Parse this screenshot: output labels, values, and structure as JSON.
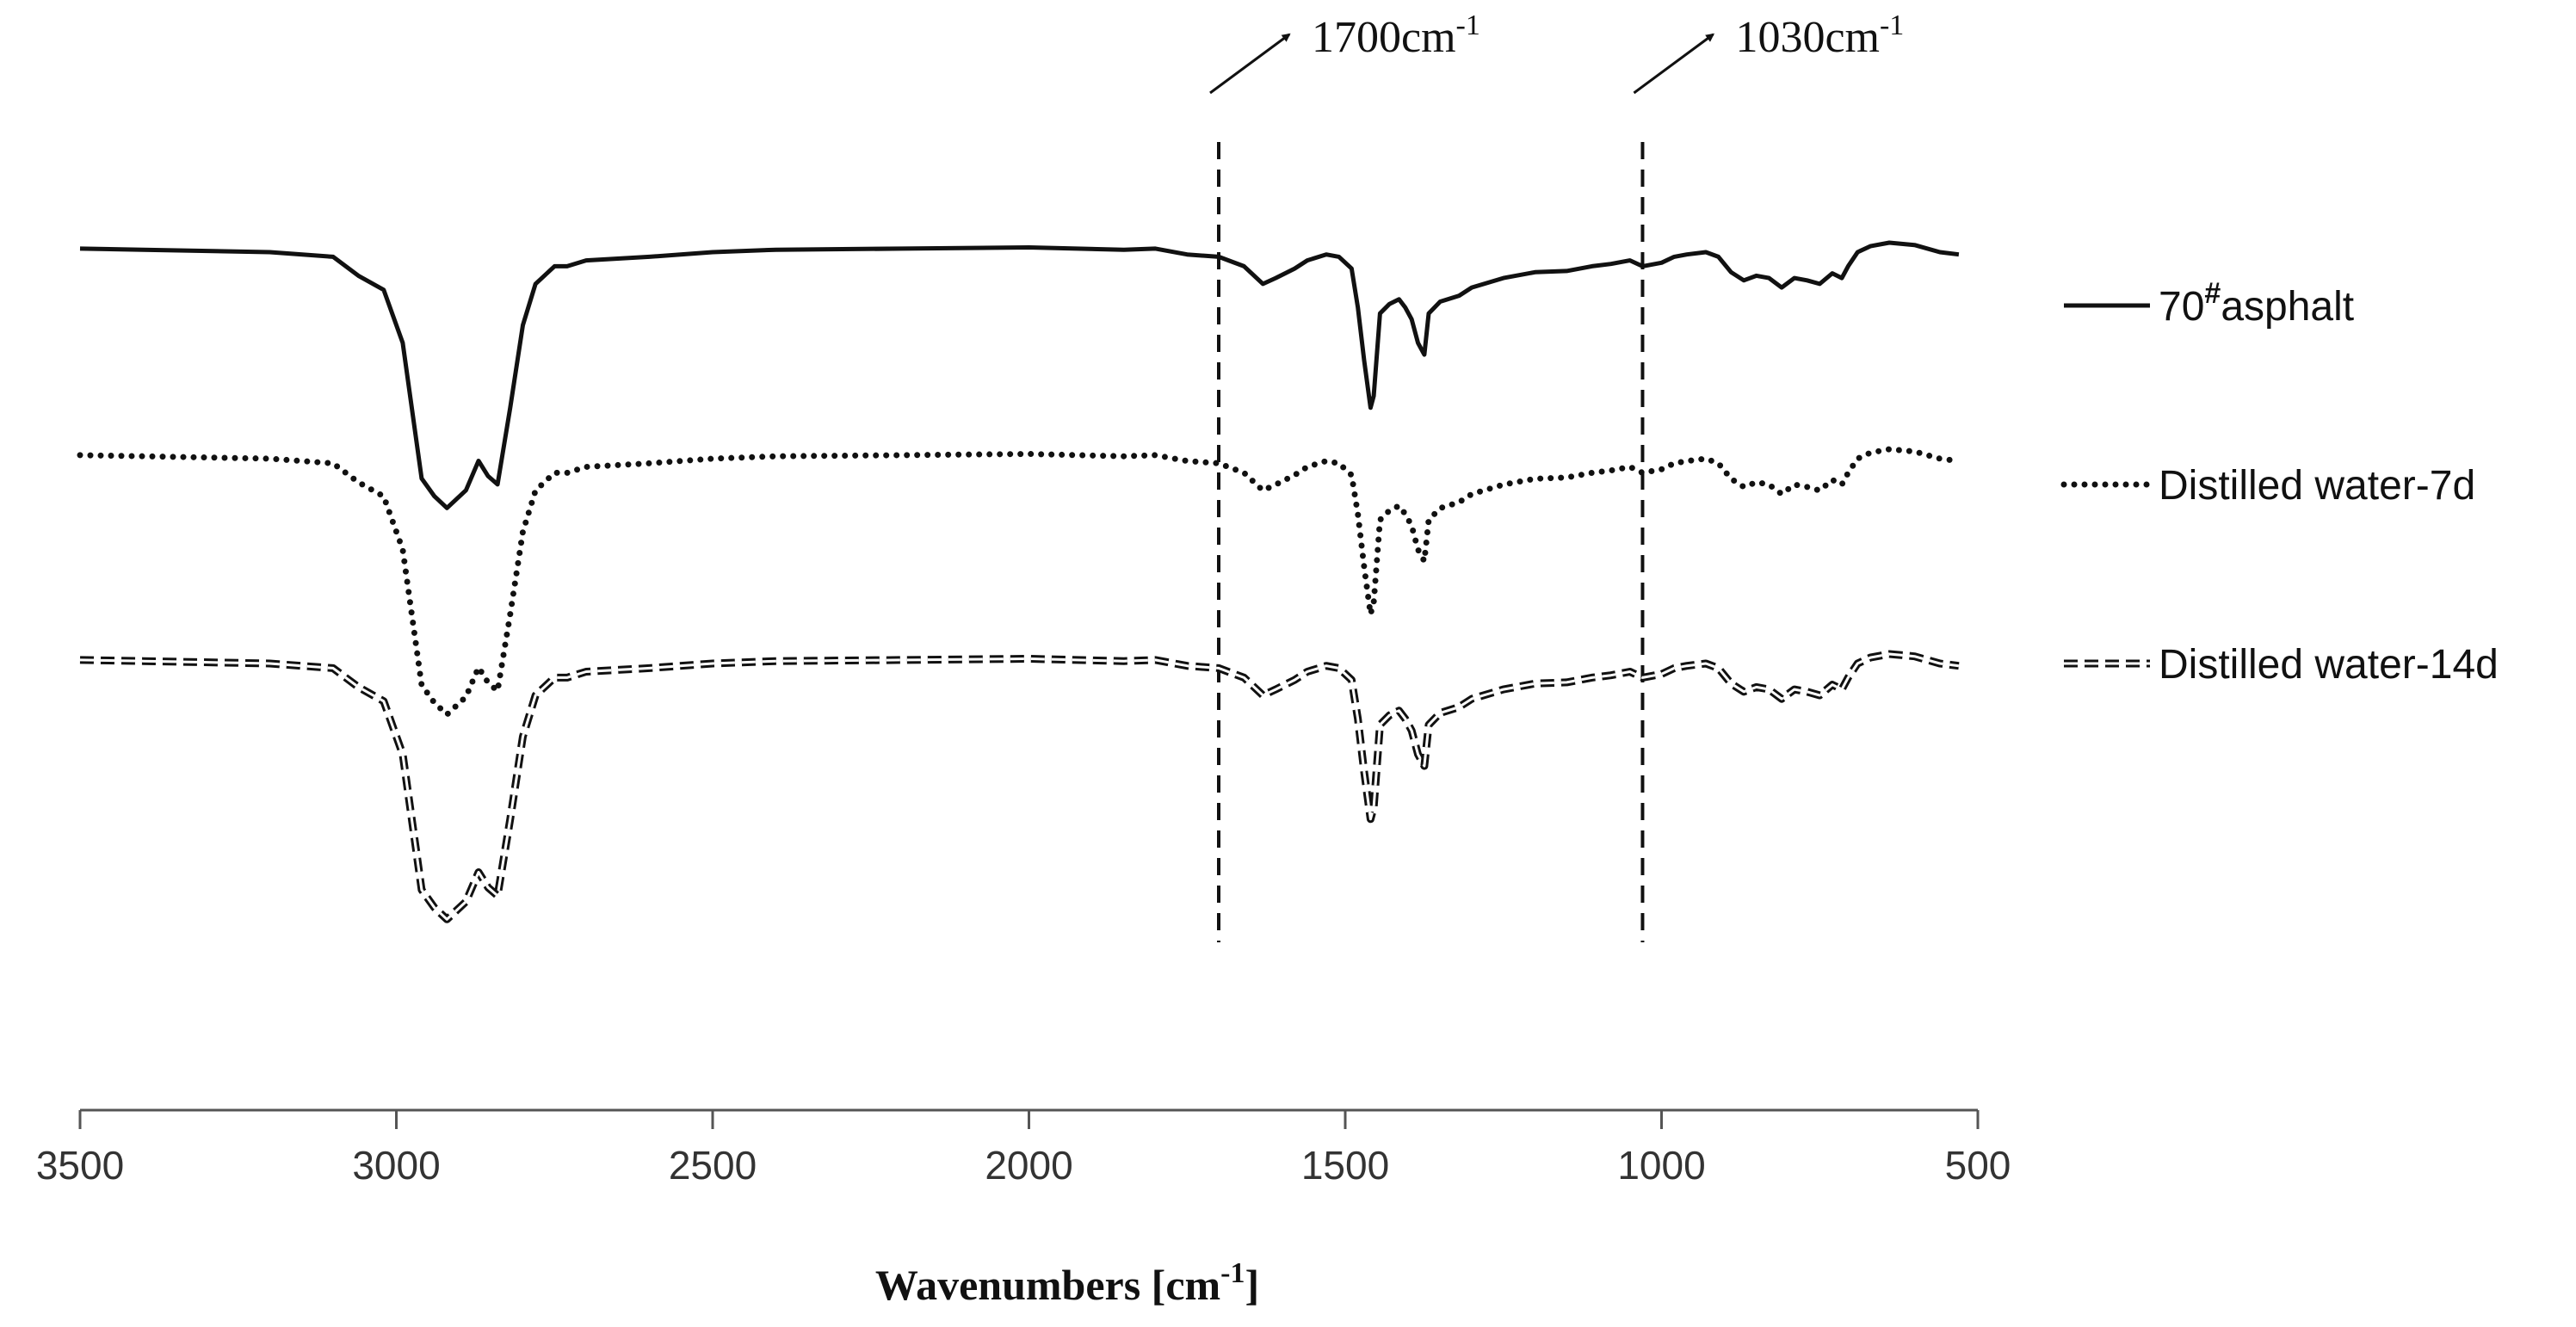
{
  "chart_data": {
    "type": "line",
    "title": "",
    "xlabel": "Wavenumbers [cm",
    "xlabel_sup": "-1",
    "xlabel_close": "]",
    "xlim": [
      3500,
      500
    ],
    "x_ticks": [
      3500,
      3000,
      2500,
      2000,
      1500,
      1000,
      500
    ],
    "y_axis_shown": false,
    "grid": false,
    "legend_position": "right",
    "annotations": [
      {
        "x": 1700,
        "label": "1700cm",
        "sup": "-1"
      },
      {
        "x": 1030,
        "label": "1030cm",
        "sup": "-1"
      }
    ],
    "series": [
      {
        "name": "70# asphalt",
        "legend_label": "70",
        "legend_sup": "#",
        "legend_suffix": "asphalt",
        "style": "solid",
        "color": "#111111",
        "points": [
          [
            3500,
            5
          ],
          [
            3400,
            6
          ],
          [
            3200,
            8
          ],
          [
            3100,
            12
          ],
          [
            3060,
            28
          ],
          [
            3020,
            40
          ],
          [
            2990,
            85
          ],
          [
            2960,
            200
          ],
          [
            2940,
            215
          ],
          [
            2920,
            225
          ],
          [
            2890,
            210
          ],
          [
            2870,
            185
          ],
          [
            2855,
            198
          ],
          [
            2840,
            205
          ],
          [
            2820,
            140
          ],
          [
            2800,
            70
          ],
          [
            2780,
            35
          ],
          [
            2750,
            20
          ],
          [
            2730,
            20
          ],
          [
            2700,
            15
          ],
          [
            2600,
            12
          ],
          [
            2500,
            8
          ],
          [
            2400,
            6
          ],
          [
            2200,
            5
          ],
          [
            2000,
            4
          ],
          [
            1850,
            6
          ],
          [
            1800,
            5
          ],
          [
            1750,
            10
          ],
          [
            1700,
            12
          ],
          [
            1660,
            20
          ],
          [
            1630,
            35
          ],
          [
            1610,
            30
          ],
          [
            1580,
            22
          ],
          [
            1560,
            15
          ],
          [
            1530,
            10
          ],
          [
            1510,
            12
          ],
          [
            1490,
            22
          ],
          [
            1480,
            55
          ],
          [
            1470,
            100
          ],
          [
            1460,
            140
          ],
          [
            1455,
            130
          ],
          [
            1445,
            60
          ],
          [
            1430,
            52
          ],
          [
            1415,
            48
          ],
          [
            1405,
            55
          ],
          [
            1395,
            65
          ],
          [
            1385,
            85
          ],
          [
            1375,
            95
          ],
          [
            1368,
            60
          ],
          [
            1350,
            50
          ],
          [
            1320,
            45
          ],
          [
            1300,
            38
          ],
          [
            1250,
            30
          ],
          [
            1200,
            25
          ],
          [
            1150,
            24
          ],
          [
            1110,
            20
          ],
          [
            1080,
            18
          ],
          [
            1050,
            15
          ],
          [
            1030,
            20
          ],
          [
            1000,
            17
          ],
          [
            980,
            12
          ],
          [
            960,
            10
          ],
          [
            930,
            8
          ],
          [
            910,
            12
          ],
          [
            890,
            25
          ],
          [
            870,
            32
          ],
          [
            850,
            28
          ],
          [
            830,
            30
          ],
          [
            810,
            38
          ],
          [
            790,
            30
          ],
          [
            770,
            32
          ],
          [
            750,
            35
          ],
          [
            730,
            26
          ],
          [
            715,
            30
          ],
          [
            705,
            20
          ],
          [
            690,
            8
          ],
          [
            670,
            3
          ],
          [
            640,
            0
          ],
          [
            600,
            2
          ],
          [
            560,
            8
          ],
          [
            530,
            10
          ]
        ]
      },
      {
        "name": "Distilled water-7d",
        "legend_label": "Distilled water-7d",
        "style": "dotted",
        "color": "#111111",
        "points": [
          [
            3500,
            5
          ],
          [
            3400,
            6
          ],
          [
            3200,
            8
          ],
          [
            3100,
            12
          ],
          [
            3060,
            28
          ],
          [
            3020,
            40
          ],
          [
            2990,
            85
          ],
          [
            2960,
            200
          ],
          [
            2940,
            215
          ],
          [
            2920,
            225
          ],
          [
            2890,
            210
          ],
          [
            2870,
            185
          ],
          [
            2855,
            198
          ],
          [
            2840,
            205
          ],
          [
            2820,
            140
          ],
          [
            2800,
            70
          ],
          [
            2780,
            35
          ],
          [
            2750,
            20
          ],
          [
            2730,
            20
          ],
          [
            2700,
            15
          ],
          [
            2600,
            12
          ],
          [
            2500,
            8
          ],
          [
            2400,
            6
          ],
          [
            2200,
            5
          ],
          [
            2000,
            4
          ],
          [
            1850,
            6
          ],
          [
            1800,
            5
          ],
          [
            1750,
            10
          ],
          [
            1700,
            12
          ],
          [
            1660,
            20
          ],
          [
            1630,
            35
          ],
          [
            1610,
            30
          ],
          [
            1580,
            22
          ],
          [
            1560,
            15
          ],
          [
            1530,
            10
          ],
          [
            1510,
            12
          ],
          [
            1490,
            22
          ],
          [
            1480,
            55
          ],
          [
            1470,
            100
          ],
          [
            1460,
            140
          ],
          [
            1455,
            130
          ],
          [
            1445,
            60
          ],
          [
            1430,
            52
          ],
          [
            1415,
            48
          ],
          [
            1405,
            55
          ],
          [
            1395,
            65
          ],
          [
            1385,
            85
          ],
          [
            1375,
            95
          ],
          [
            1368,
            60
          ],
          [
            1350,
            50
          ],
          [
            1320,
            45
          ],
          [
            1300,
            38
          ],
          [
            1250,
            30
          ],
          [
            1200,
            25
          ],
          [
            1150,
            24
          ],
          [
            1110,
            20
          ],
          [
            1080,
            18
          ],
          [
            1050,
            15
          ],
          [
            1030,
            20
          ],
          [
            1000,
            17
          ],
          [
            980,
            12
          ],
          [
            960,
            10
          ],
          [
            930,
            8
          ],
          [
            910,
            12
          ],
          [
            890,
            25
          ],
          [
            870,
            32
          ],
          [
            850,
            28
          ],
          [
            830,
            30
          ],
          [
            810,
            38
          ],
          [
            790,
            30
          ],
          [
            770,
            32
          ],
          [
            750,
            35
          ],
          [
            730,
            26
          ],
          [
            715,
            30
          ],
          [
            705,
            20
          ],
          [
            690,
            8
          ],
          [
            670,
            3
          ],
          [
            640,
            0
          ],
          [
            600,
            2
          ],
          [
            560,
            8
          ],
          [
            530,
            10
          ]
        ]
      },
      {
        "name": "Distilled water-14d",
        "legend_label": "Distilled water-14d",
        "style": "double-dashed",
        "color": "#111111",
        "points": [
          [
            3500,
            5
          ],
          [
            3400,
            6
          ],
          [
            3200,
            8
          ],
          [
            3100,
            12
          ],
          [
            3060,
            28
          ],
          [
            3020,
            40
          ],
          [
            2990,
            85
          ],
          [
            2960,
            200
          ],
          [
            2940,
            215
          ],
          [
            2920,
            225
          ],
          [
            2890,
            210
          ],
          [
            2870,
            185
          ],
          [
            2855,
            198
          ],
          [
            2840,
            205
          ],
          [
            2820,
            140
          ],
          [
            2800,
            70
          ],
          [
            2780,
            35
          ],
          [
            2750,
            20
          ],
          [
            2730,
            20
          ],
          [
            2700,
            15
          ],
          [
            2600,
            12
          ],
          [
            2500,
            8
          ],
          [
            2400,
            6
          ],
          [
            2200,
            5
          ],
          [
            2000,
            4
          ],
          [
            1850,
            6
          ],
          [
            1800,
            5
          ],
          [
            1750,
            10
          ],
          [
            1700,
            12
          ],
          [
            1660,
            20
          ],
          [
            1630,
            35
          ],
          [
            1610,
            30
          ],
          [
            1580,
            22
          ],
          [
            1560,
            15
          ],
          [
            1530,
            10
          ],
          [
            1510,
            12
          ],
          [
            1490,
            22
          ],
          [
            1480,
            55
          ],
          [
            1470,
            100
          ],
          [
            1460,
            140
          ],
          [
            1455,
            130
          ],
          [
            1445,
            60
          ],
          [
            1430,
            52
          ],
          [
            1415,
            48
          ],
          [
            1405,
            55
          ],
          [
            1395,
            65
          ],
          [
            1385,
            85
          ],
          [
            1375,
            95
          ],
          [
            1368,
            60
          ],
          [
            1350,
            50
          ],
          [
            1320,
            45
          ],
          [
            1300,
            38
          ],
          [
            1250,
            30
          ],
          [
            1200,
            25
          ],
          [
            1150,
            24
          ],
          [
            1110,
            20
          ],
          [
            1080,
            18
          ],
          [
            1050,
            15
          ],
          [
            1030,
            20
          ],
          [
            1000,
            17
          ],
          [
            980,
            12
          ],
          [
            960,
            10
          ],
          [
            930,
            8
          ],
          [
            910,
            12
          ],
          [
            890,
            25
          ],
          [
            870,
            32
          ],
          [
            850,
            28
          ],
          [
            830,
            30
          ],
          [
            810,
            38
          ],
          [
            790,
            30
          ],
          [
            770,
            32
          ],
          [
            750,
            35
          ],
          [
            730,
            26
          ],
          [
            715,
            30
          ],
          [
            705,
            20
          ],
          [
            690,
            8
          ],
          [
            670,
            3
          ],
          [
            640,
            0
          ],
          [
            600,
            2
          ],
          [
            560,
            8
          ],
          [
            530,
            10
          ]
        ]
      }
    ]
  }
}
